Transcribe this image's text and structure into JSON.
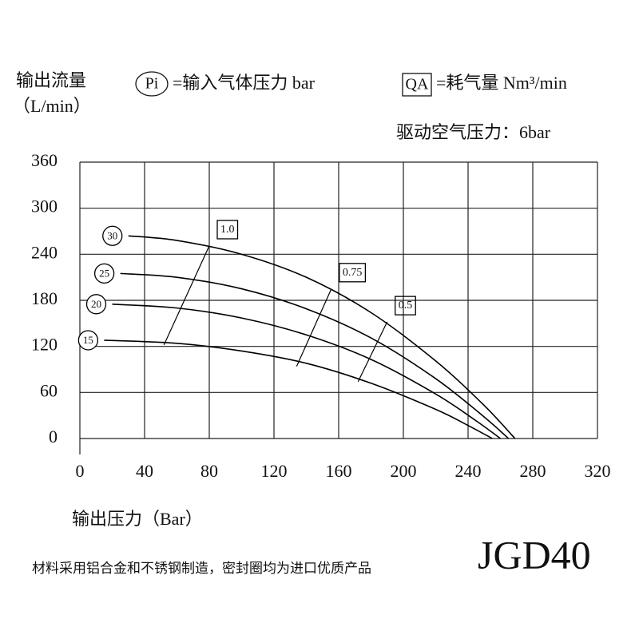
{
  "chart_data": {
    "type": "line",
    "y_label": [
      "输出流量",
      "（L/min）"
    ],
    "legend": [
      {
        "symbol": "Pi",
        "text": "=输入气体压力 bar"
      },
      {
        "symbol": "QA",
        "text": "=耗气量 Nm³/min"
      }
    ],
    "subtitle": "驱动空气压力：6bar",
    "x_label": "输出压力（Bar）",
    "footnote": "材料采用铝合金和不锈钢制造，密封圈均为进口优质产品",
    "model": "JGD40",
    "xlim": [
      0,
      320
    ],
    "ylim": [
      0,
      360
    ],
    "xticks": [
      0,
      40,
      80,
      120,
      160,
      200,
      240,
      280,
      320
    ],
    "yticks": [
      0,
      60,
      120,
      180,
      240,
      300,
      360
    ],
    "grid": true,
    "color": "#000000",
    "series": [
      {
        "name": "30",
        "x": [
          30,
          60,
          100,
          140,
          180,
          220,
          250,
          269
        ],
        "values": [
          264,
          258,
          240,
          210,
          164,
          101,
          43,
          0
        ]
      },
      {
        "name": "25",
        "x": [
          25,
          60,
          100,
          140,
          180,
          220,
          250,
          265
        ],
        "values": [
          215,
          210,
          195,
          169,
          131,
          78,
          28,
          0
        ]
      },
      {
        "name": "20",
        "x": [
          20,
          60,
          100,
          140,
          180,
          220,
          245,
          260
        ],
        "values": [
          175,
          170,
          157,
          135,
          103,
          58,
          23,
          0
        ]
      },
      {
        "name": "15",
        "x": [
          15,
          60,
          100,
          140,
          180,
          220,
          240,
          255
        ],
        "values": [
          128,
          124,
          114,
          98,
          72,
          38,
          17,
          0
        ]
      }
    ],
    "qa_lines": [
      {
        "name": "1.0",
        "x": [
          52,
          80
        ],
        "values": [
          122,
          251
        ]
      },
      {
        "name": "0.75",
        "x": [
          134,
          155.5
        ],
        "values": [
          94,
          195
        ]
      },
      {
        "name": "0.5",
        "x": [
          172,
          190
        ],
        "values": [
          74,
          152
        ]
      }
    ]
  }
}
